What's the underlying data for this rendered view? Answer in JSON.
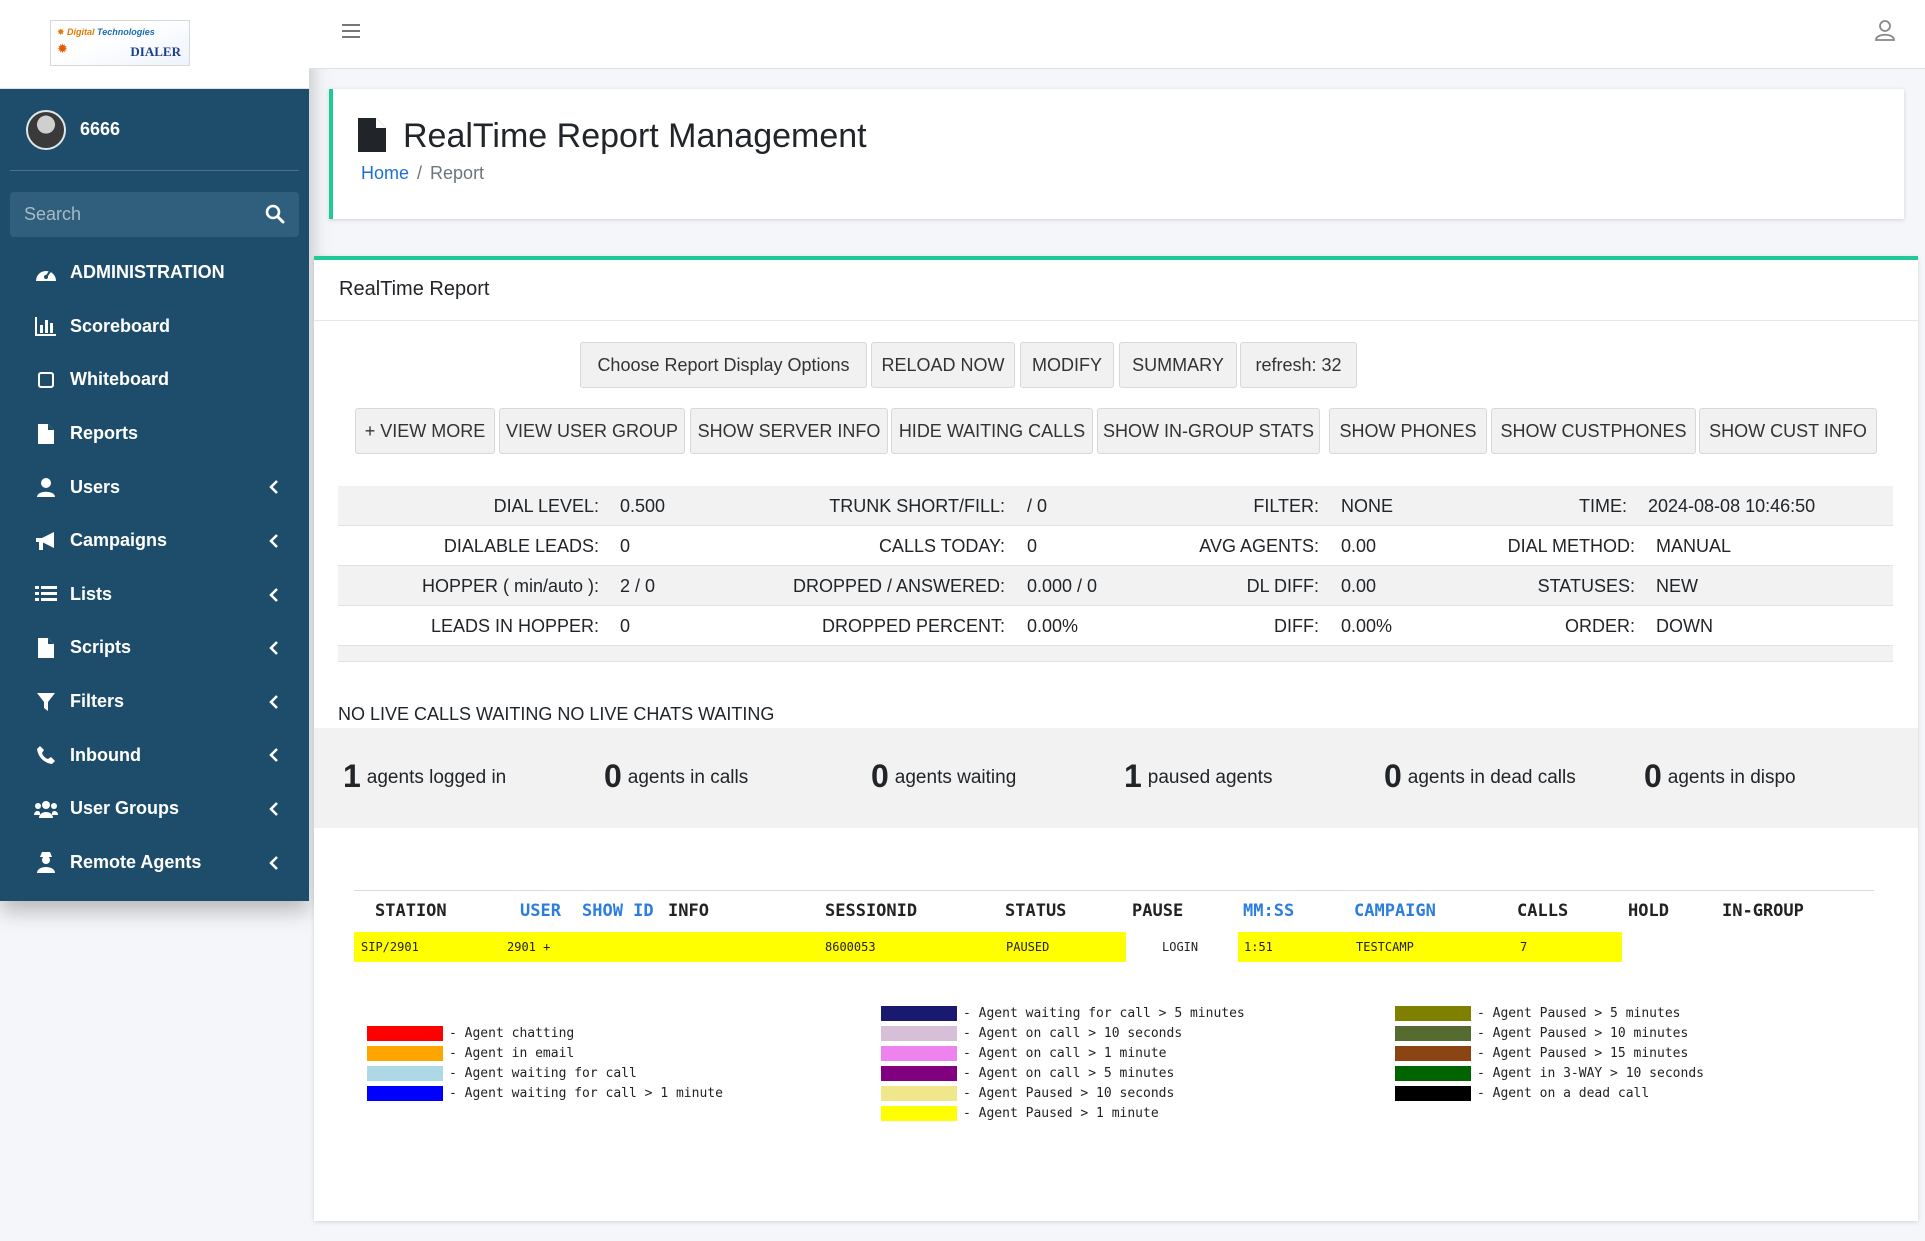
{
  "user": {
    "name": "6666"
  },
  "search": {
    "placeholder": "Search"
  },
  "nav": [
    {
      "label": "ADMINISTRATION",
      "icon": "gauge-icon"
    },
    {
      "label": "Scoreboard",
      "icon": "bar-chart-icon"
    },
    {
      "label": "Whiteboard",
      "icon": "square-icon"
    },
    {
      "label": "Reports",
      "icon": "file-icon"
    },
    {
      "label": "Users",
      "icon": "user-icon"
    },
    {
      "label": "Campaigns",
      "icon": "bullhorn-icon"
    },
    {
      "label": "Lists",
      "icon": "list-icon"
    },
    {
      "label": "Scripts",
      "icon": "file-icon"
    },
    {
      "label": "Filters",
      "icon": "filter-icon"
    },
    {
      "label": "Inbound",
      "icon": "phone-icon"
    },
    {
      "label": "User Groups",
      "icon": "users-icon"
    },
    {
      "label": "Remote Agents",
      "icon": "user-secret-icon"
    }
  ],
  "page": {
    "title": "RealTime Report Management",
    "breadcrumb": {
      "home": "Home",
      "current": "Report"
    }
  },
  "report": {
    "card_title": "RealTime Report",
    "buttons_row1": [
      "Choose Report Display Options",
      "RELOAD NOW",
      "MODIFY",
      "SUMMARY",
      "refresh: 32"
    ],
    "buttons_row2": [
      "+ VIEW MORE",
      "VIEW USER GROUP",
      "SHOW SERVER INFO",
      "HIDE WAITING CALLS",
      "SHOW IN-GROUP STATS",
      "SHOW PHONES",
      "SHOW CUSTPHONES",
      "SHOW CUST INFO"
    ],
    "stats": {
      "dial_level": {
        "label": "DIAL LEVEL:",
        "value": "0.500"
      },
      "trunk": {
        "label": "TRUNK SHORT/FILL:",
        "value": "/ 0"
      },
      "filter": {
        "label": "FILTER:",
        "value": "NONE"
      },
      "time": {
        "label": "TIME:",
        "value": "2024-08-08 10:46:50"
      },
      "dialable": {
        "label": "DIALABLE LEADS:",
        "value": "0"
      },
      "calls_today": {
        "label": "CALLS TODAY:",
        "value": "0"
      },
      "avg_agents": {
        "label": "AVG AGENTS:",
        "value": "0.00"
      },
      "dial_method": {
        "label": "DIAL METHOD:",
        "value": "MANUAL"
      },
      "hopper": {
        "label": "HOPPER ( min/auto ):",
        "value": "2 / 0"
      },
      "dropped_answered": {
        "label": "DROPPED / ANSWERED:",
        "value": "0.000 / 0"
      },
      "dl_diff": {
        "label": "DL DIFF:",
        "value": "0.00"
      },
      "statuses": {
        "label": "STATUSES:",
        "value": "NEW"
      },
      "leads_hopper": {
        "label": "LEADS IN HOPPER:",
        "value": "0"
      },
      "dropped_pct": {
        "label": "DROPPED PERCENT:",
        "value": "0.00%"
      },
      "diff": {
        "label": "DIFF:",
        "value": "0.00%"
      },
      "order": {
        "label": "ORDER:",
        "value": "DOWN"
      }
    },
    "waiting_text": "NO LIVE CALLS WAITING NO LIVE CHATS WAITING",
    "agents": [
      {
        "count": "1",
        "label": "agents logged in"
      },
      {
        "count": "0",
        "label": "agents in calls"
      },
      {
        "count": "0",
        "label": "agents waiting"
      },
      {
        "count": "1",
        "label": "paused agents"
      },
      {
        "count": "0",
        "label": "agents in dead calls"
      },
      {
        "count": "0",
        "label": "agents in dispo"
      }
    ],
    "table": {
      "headers": {
        "station": "STATION",
        "user": "USER",
        "show_id": "SHOW ID",
        "info": "INFO",
        "sessionid": "SESSIONID",
        "status": "STATUS",
        "pause": "PAUSE",
        "mmss": "MM:SS",
        "campaign": "CAMPAIGN",
        "calls": "CALLS",
        "hold": "HOLD",
        "ingroup": "IN-GROUP"
      },
      "row": {
        "station": "SIP/2901",
        "user": "2901 +",
        "sessionid": "8600053",
        "status": "PAUSED",
        "pause": "LOGIN",
        "mmss": "1:51",
        "campaign": "TESTCAMP",
        "calls": "7"
      }
    },
    "legend": [
      {
        "color": "#ff0000",
        "text": "- Agent chatting"
      },
      {
        "color": "#ffa500",
        "text": "- Agent in email"
      },
      {
        "color": "#add8e6",
        "text": "- Agent waiting for call"
      },
      {
        "color": "#0000ff",
        "text": "- Agent waiting for call > 1 minute"
      },
      {
        "color": "#191970",
        "text": "- Agent waiting for call > 5 minutes"
      },
      {
        "color": "#d8bfd8",
        "text": "- Agent on call > 10 seconds"
      },
      {
        "color": "#ee82ee",
        "text": "- Agent on call > 1 minute"
      },
      {
        "color": "#800080",
        "text": "- Agent on call > 5 minutes"
      },
      {
        "color": "#f0e68c",
        "text": "- Agent Paused > 10 seconds"
      },
      {
        "color": "#ffff00",
        "text": "- Agent Paused > 1 minute"
      },
      {
        "color": "#808000",
        "text": "- Agent Paused > 5 minutes"
      },
      {
        "color": "#556b2f",
        "text": "- Agent Paused > 10 minutes"
      },
      {
        "color": "#8b4513",
        "text": "- Agent Paused > 15 minutes"
      },
      {
        "color": "#006400",
        "text": "- Agent in 3-WAY > 10 seconds"
      },
      {
        "color": "#000000",
        "text": "- Agent on a dead call"
      }
    ]
  }
}
